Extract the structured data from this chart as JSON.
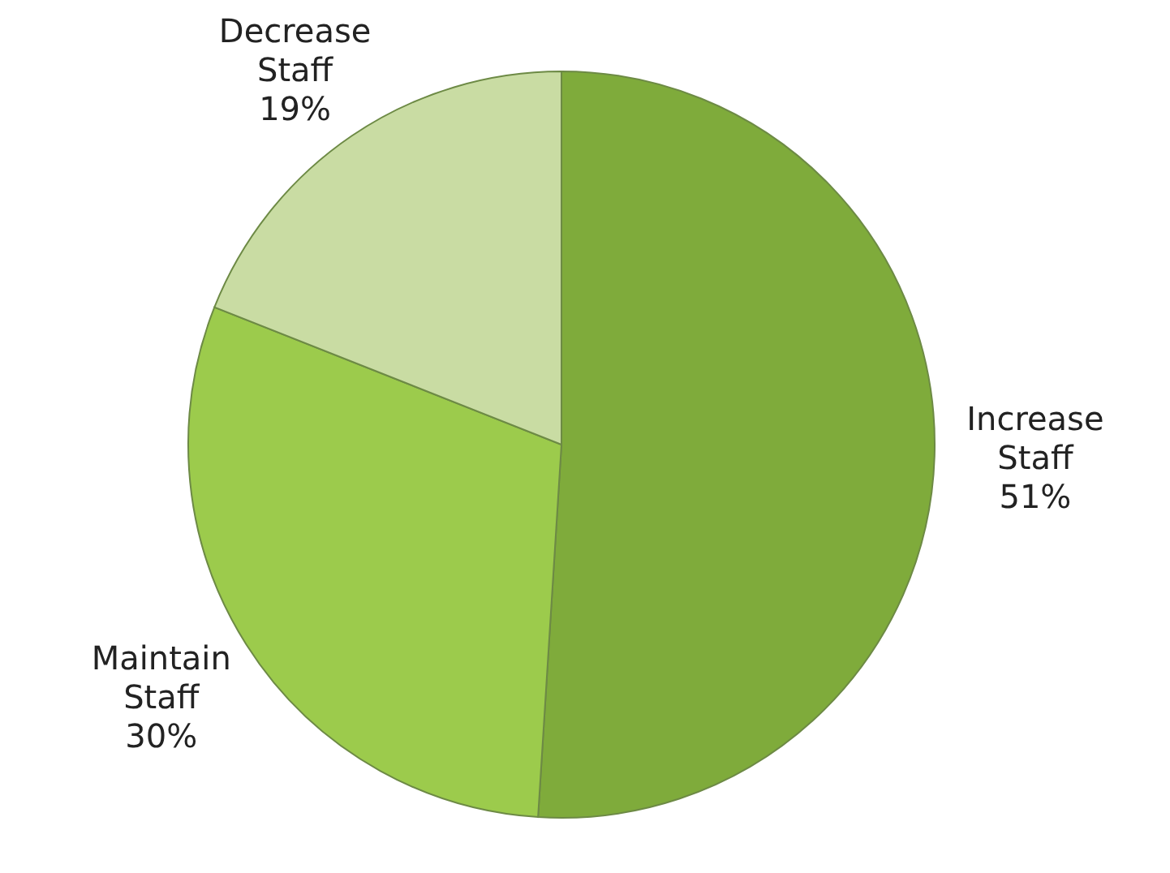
{
  "chart_data": {
    "type": "pie",
    "categories": [
      "Increase Staff",
      "Maintain Staff",
      "Decrease Staff"
    ],
    "values": [
      51,
      30,
      19
    ],
    "value_labels": [
      "51%",
      "30%",
      "19%"
    ],
    "colors": [
      "#7fab3b",
      "#9ccb4c",
      "#c9dca3"
    ],
    "legend": false
  }
}
